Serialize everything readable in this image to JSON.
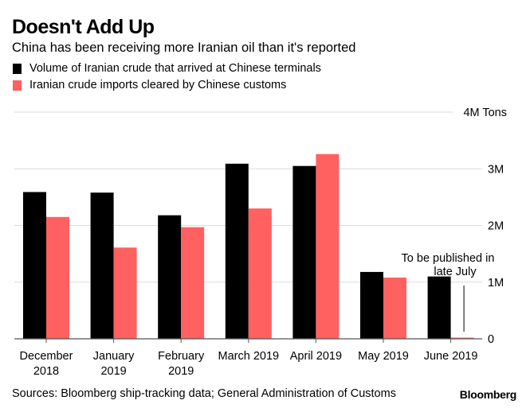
{
  "header": {
    "title": "Doesn't Add Up",
    "subtitle": "China has been receiving more Iranian oil than it's reported"
  },
  "legend": [
    {
      "label": "Volume of Iranian crude that arrived at Chinese terminals",
      "color": "#000000"
    },
    {
      "label": "Iranian crude imports cleared by Chinese customs",
      "color": "#ff6161"
    }
  ],
  "footer": {
    "source": "Sources: Bloomberg ship-tracking data; General Administration of Customs",
    "brand": "Bloomberg"
  },
  "chart_data": {
    "type": "bar",
    "title": "Doesn't Add Up",
    "subtitle": "China has been receiving more Iranian oil than it's reported",
    "xlabel": "",
    "ylabel": "Tons",
    "ylim": [
      0,
      4
    ],
    "y_unit": "million tons",
    "grid": true,
    "legend_position": "top-left",
    "categories": [
      [
        "December",
        "2018"
      ],
      [
        "January",
        "2019"
      ],
      [
        "February",
        "2019"
      ],
      [
        "March 2019"
      ],
      [
        "April 2019"
      ],
      [
        "May 2019"
      ],
      [
        "June 2019"
      ]
    ],
    "series": [
      {
        "name": "Volume of Iranian crude that arrived at Chinese terminals",
        "color": "#000000",
        "values": [
          2.59,
          2.58,
          2.18,
          3.09,
          3.05,
          1.18,
          1.1
        ]
      },
      {
        "name": "Iranian crude imports cleared by Chinese customs",
        "color": "#ff6161",
        "values": [
          2.15,
          1.61,
          1.97,
          2.3,
          3.26,
          1.08,
          0.02
        ]
      }
    ],
    "yticks": [
      {
        "value": 0,
        "label": "0"
      },
      {
        "value": 1,
        "label": "1M"
      },
      {
        "value": 2,
        "label": "2M"
      },
      {
        "value": 3,
        "label": "3M"
      },
      {
        "value": 4,
        "label": "4M Tons"
      }
    ],
    "annotations": [
      {
        "text": [
          "To be published in",
          "late July"
        ],
        "category_index": 6,
        "series_index": 1
      }
    ]
  }
}
